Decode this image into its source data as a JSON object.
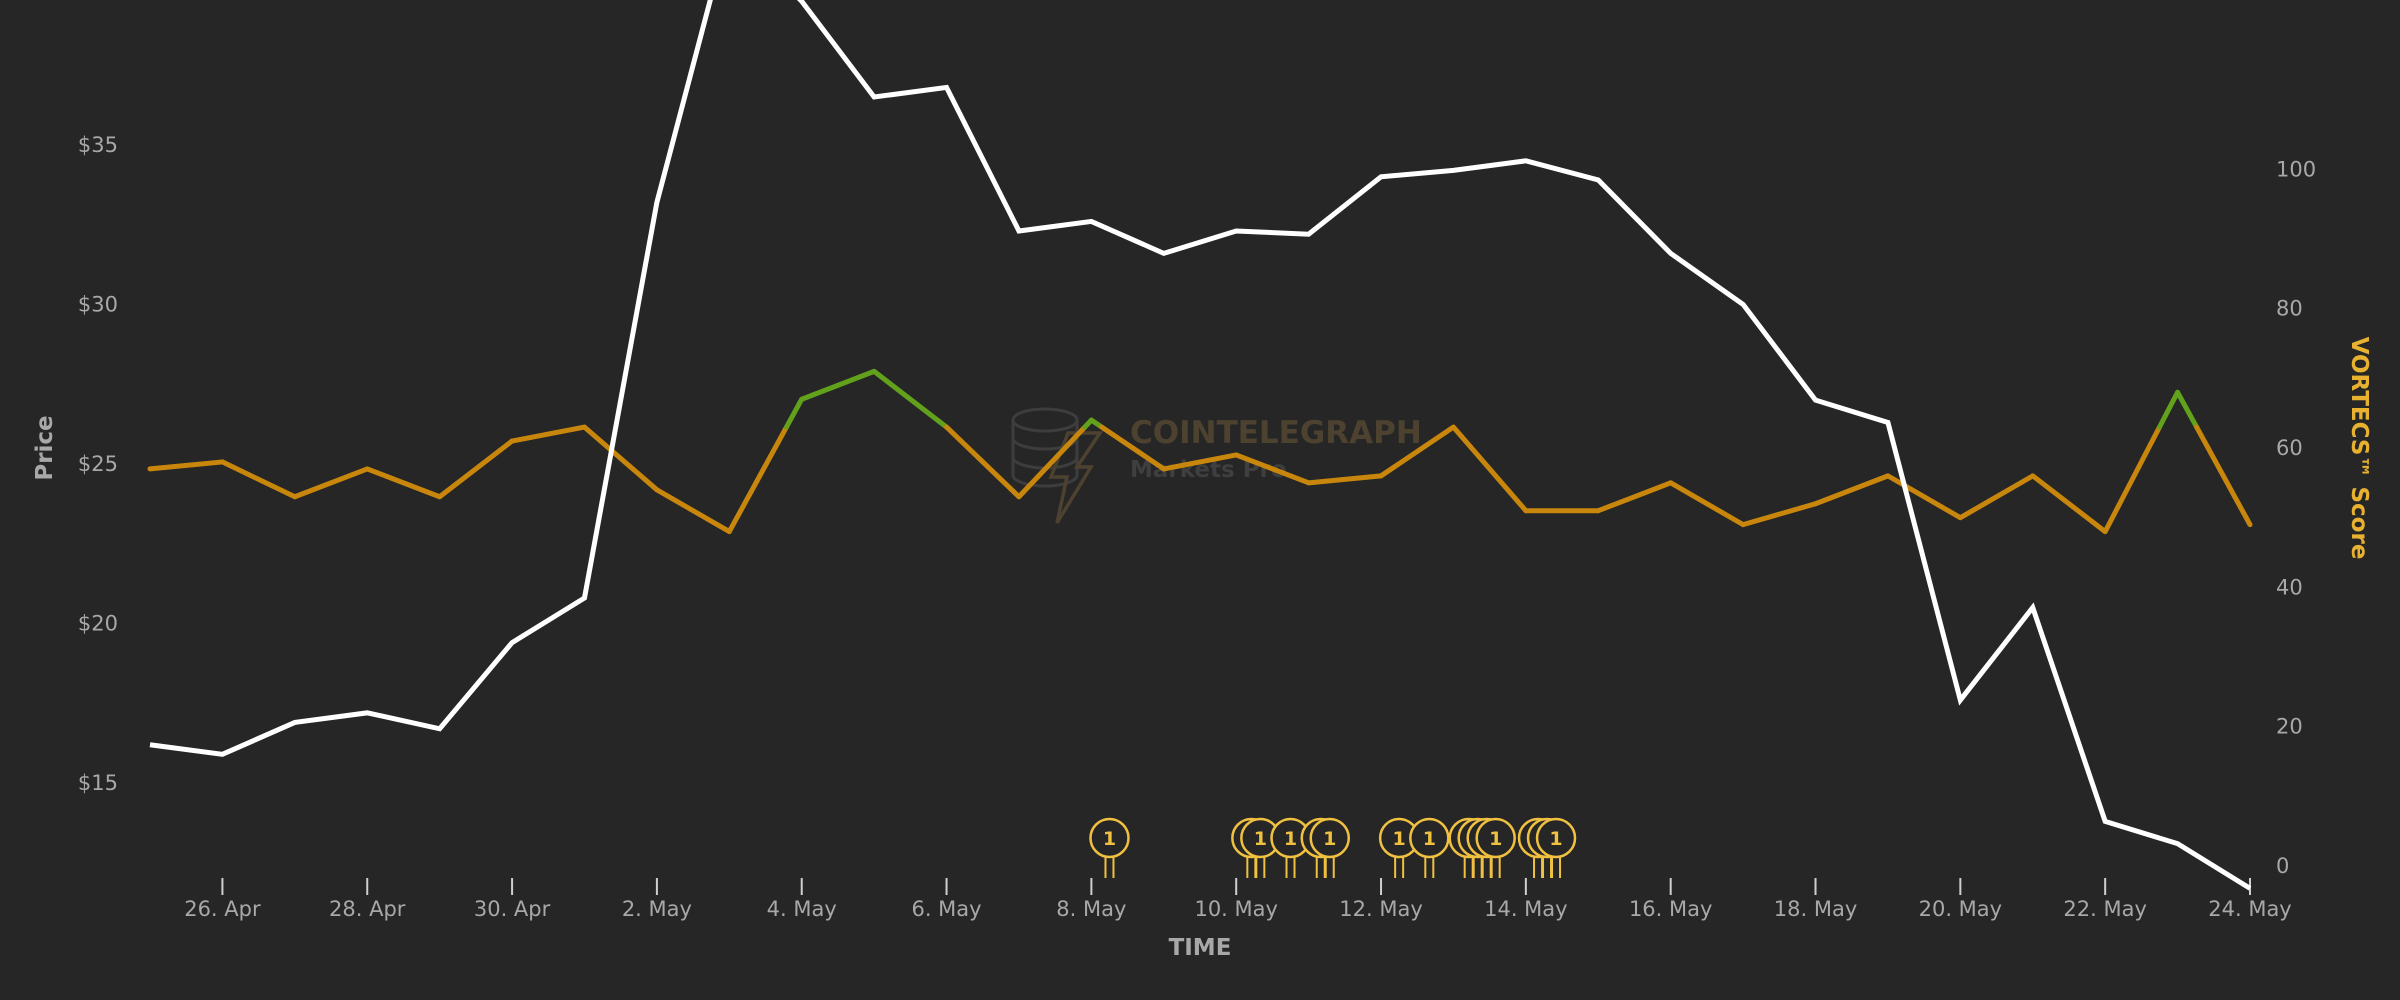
{
  "colors": {
    "background": "#262626",
    "price_line": "#ffffff",
    "score_line": "#c8870c",
    "score_high": "#62a11c",
    "score_axis_title": "#e8b230",
    "event_marker": "#f0c040",
    "tick_text": "#a8a8a8"
  },
  "watermark": {
    "line1": "COINTELEGRAPH",
    "line2": "Markets Pro"
  },
  "icons": {
    "watermark_logo": "coins-lightning-icon",
    "event_flag": "event-flag-icon"
  },
  "chart_data": {
    "type": "line",
    "xlabel": "TIME",
    "ylabel": "Price",
    "y2label": "VORTECS™ Score",
    "grid": false,
    "legend": "none",
    "x": [
      "2022-04-25",
      "2022-04-26",
      "2022-04-27",
      "2022-04-28",
      "2022-04-29",
      "2022-04-30",
      "2022-05-01",
      "2022-05-02",
      "2022-05-03",
      "2022-05-04",
      "2022-05-05",
      "2022-05-06",
      "2022-05-07",
      "2022-05-08",
      "2022-05-09",
      "2022-05-10",
      "2022-05-11",
      "2022-05-12",
      "2022-05-13",
      "2022-05-14",
      "2022-05-15",
      "2022-05-16",
      "2022-05-17",
      "2022-05-18",
      "2022-05-19",
      "2022-05-20",
      "2022-05-21",
      "2022-05-22",
      "2022-05-23",
      "2022-05-24"
    ],
    "xlim": [
      "2022-04-25",
      "2022-05-24"
    ],
    "x_tick_dates": [
      "2022-04-26",
      "2022-04-28",
      "2022-04-30",
      "2022-05-02",
      "2022-05-04",
      "2022-05-06",
      "2022-05-08",
      "2022-05-10",
      "2022-05-12",
      "2022-05-14",
      "2022-05-16",
      "2022-05-18",
      "2022-05-20",
      "2022-05-22",
      "2022-05-24"
    ],
    "x_tick_labels": [
      "26. Apr",
      "28. Apr",
      "30. Apr",
      "2. May",
      "4. May",
      "6. May",
      "8. May",
      "10. May",
      "12. May",
      "14. May",
      "16. May",
      "18. May",
      "20. May",
      "22. May",
      "24. May"
    ],
    "y_axis": {
      "ylim": [
        12.4,
        38.6
      ],
      "ticks": [
        15,
        20,
        25,
        30,
        35
      ],
      "tick_labels": [
        "$15",
        "$20",
        "$25",
        "$30",
        "$35"
      ]
    },
    "y2_axis": {
      "ylim": [
        0,
        120
      ],
      "ticks": [
        0,
        20,
        40,
        60,
        80,
        100
      ],
      "tick_labels": [
        "0",
        "20",
        "40",
        "60",
        "80",
        "100"
      ]
    },
    "score_high_threshold": 63,
    "series": [
      {
        "axis": "left",
        "values": [
          16.2,
          15.9,
          16.9,
          17.2,
          16.7,
          19.4,
          20.8,
          33.2,
          41.8,
          39.5,
          36.5,
          36.8,
          32.3,
          32.6,
          31.6,
          32.3,
          32.2,
          34.0,
          34.2,
          34.5,
          33.9,
          31.6,
          30.0,
          27.0,
          26.3,
          17.6,
          20.5,
          13.8,
          13.1,
          11.7
        ]
      },
      {
        "axis": "right",
        "values": [
          57,
          58,
          53,
          57,
          53,
          61,
          63,
          54,
          48,
          67,
          71,
          63,
          53,
          64,
          57,
          59,
          55,
          56,
          63,
          51,
          51,
          55,
          49,
          52,
          56,
          50,
          56,
          48,
          68,
          49
        ]
      }
    ],
    "events": [
      {
        "x": "2022-05-08T06:00",
        "stack": 1,
        "label": "1"
      },
      {
        "x": "2022-05-10T08:00",
        "stack": 2,
        "label": "1"
      },
      {
        "x": "2022-05-10T18:00",
        "stack": 1,
        "label": "1"
      },
      {
        "x": "2022-05-11T07:00",
        "stack": 2,
        "label": "1"
      },
      {
        "x": "2022-05-12T06:00",
        "stack": 1,
        "label": "1"
      },
      {
        "x": "2022-05-12T16:00",
        "stack": 1,
        "label": "1"
      },
      {
        "x": "2022-05-13T14:00",
        "stack": 4,
        "label": "1"
      },
      {
        "x": "2022-05-14T10:00",
        "stack": 3,
        "label": "1"
      }
    ]
  }
}
